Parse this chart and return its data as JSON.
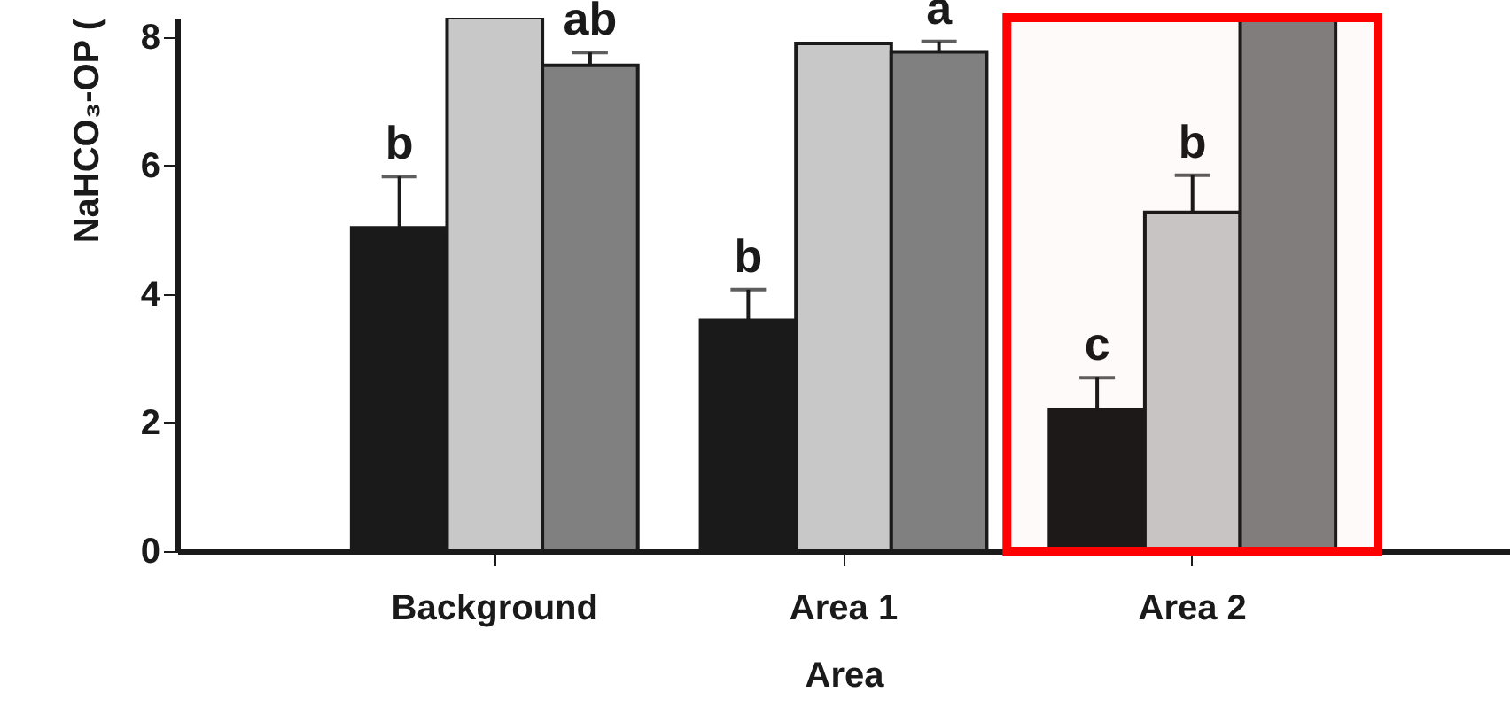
{
  "chart_data": {
    "type": "bar",
    "xlabel": "Area",
    "ylabel": "NaHCO₃-OP (",
    "categories": [
      "Background",
      "Area 1",
      "Area 2"
    ],
    "series": [
      {
        "color": "#1a1a1a",
        "values": [
          5.03,
          3.59,
          2.2
        ],
        "errors": [
          0.8,
          0.48,
          0.5
        ],
        "value_labels": [
          "b",
          "b",
          "c"
        ]
      },
      {
        "color": "#c8c8c8",
        "values": [
          8.3,
          7.9,
          5.27
        ],
        "errors": [
          null,
          null,
          0.58
        ],
        "value_labels": [
          null,
          null,
          "b"
        ]
      },
      {
        "color": "#808080",
        "values": [
          7.56,
          7.77,
          8.3
        ],
        "errors": [
          0.2,
          0.16,
          null
        ],
        "value_labels": [
          "ab",
          "a",
          null
        ]
      }
    ],
    "ylim": [
      0,
      8.3
    ],
    "yticks": [
      0,
      2,
      4,
      6,
      8
    ],
    "bands": [
      {
        "axis": "x",
        "from": "Area 2",
        "to": "Area 2",
        "color": "#ff0000"
      }
    ]
  }
}
